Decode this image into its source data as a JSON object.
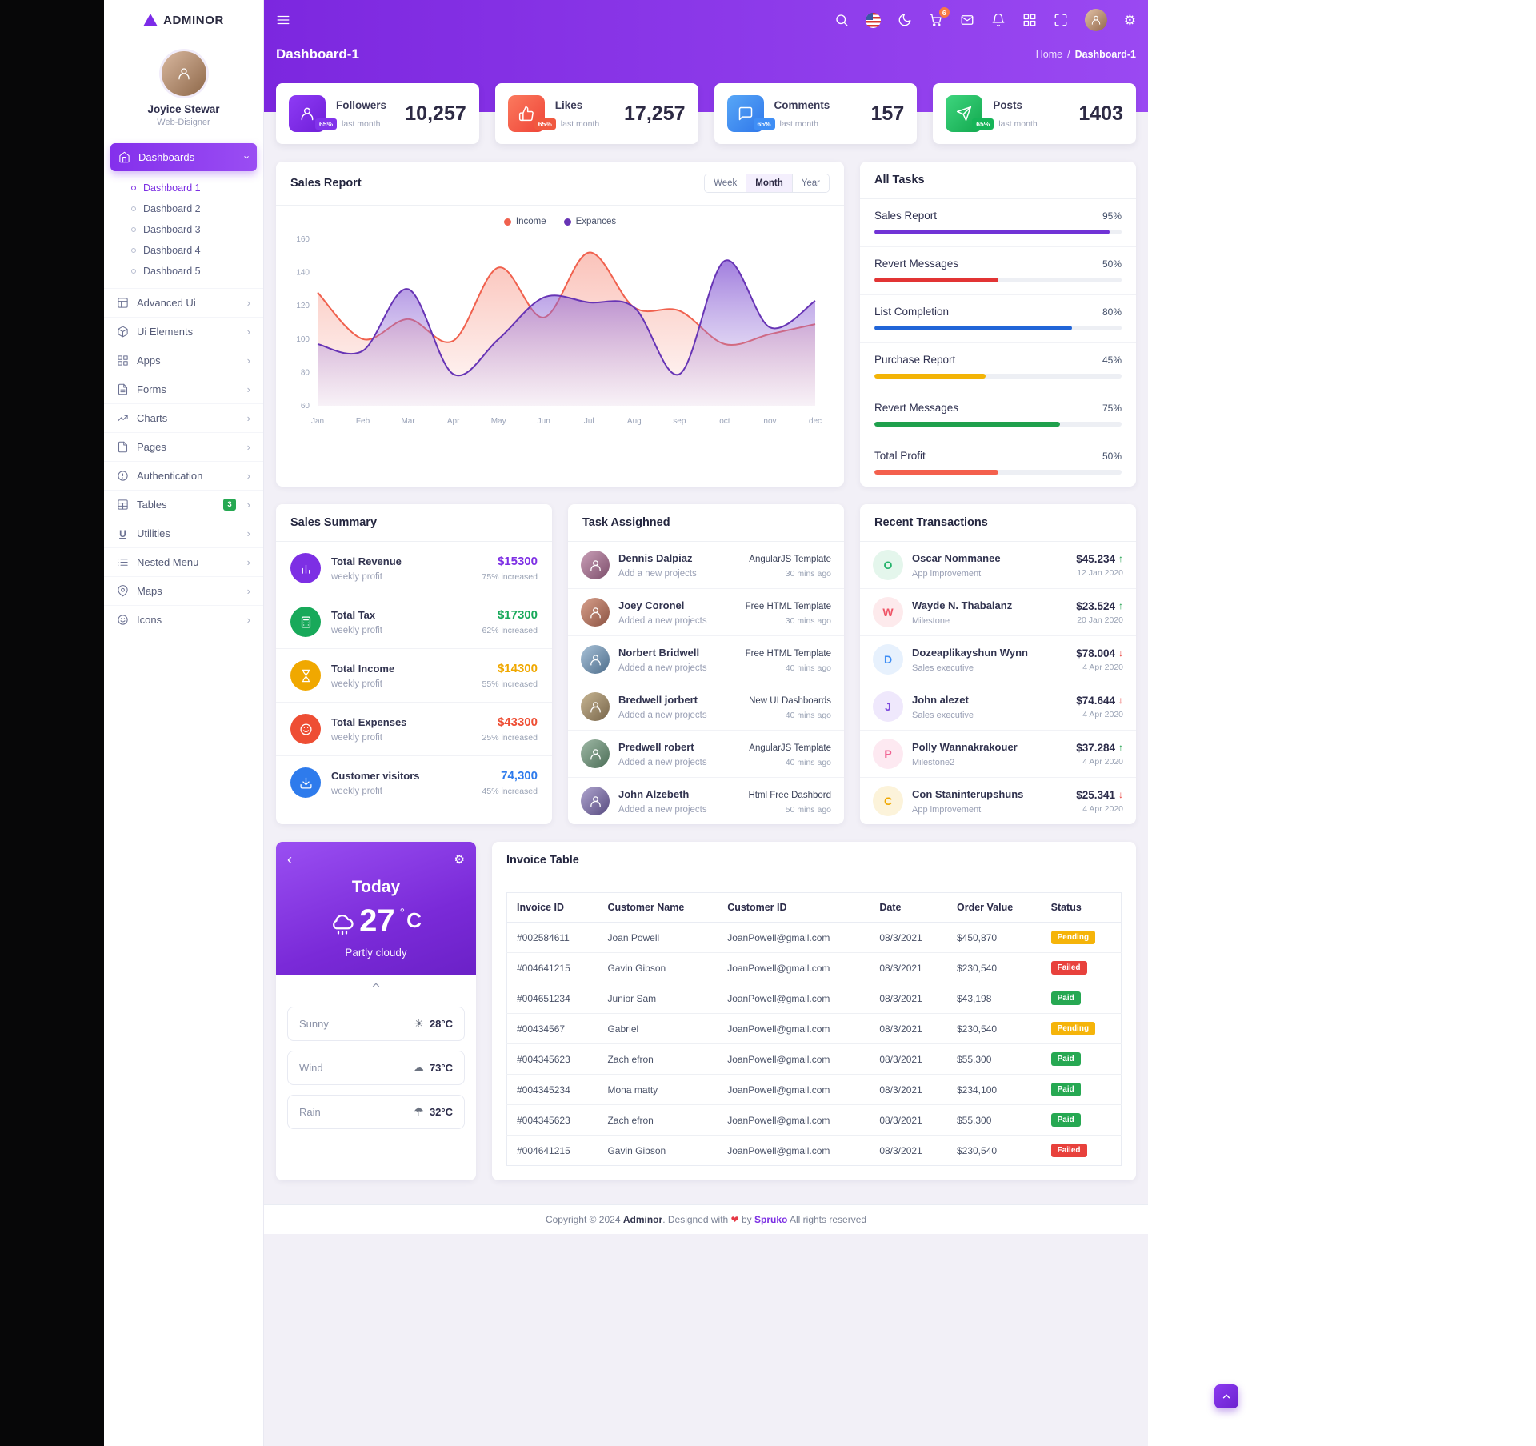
{
  "brand": {
    "name": "ADMINOR"
  },
  "profile": {
    "name": "Joyice Stewar",
    "role": "Web-Disigner"
  },
  "sidebar": {
    "items": [
      {
        "label": "Dashboards"
      },
      {
        "label": "Advanced Ui"
      },
      {
        "label": "Ui Elements"
      },
      {
        "label": "Apps"
      },
      {
        "label": "Forms"
      },
      {
        "label": "Charts"
      },
      {
        "label": "Pages"
      },
      {
        "label": "Authentication"
      },
      {
        "label": "Tables",
        "badge": "3"
      },
      {
        "label": "Utilities"
      },
      {
        "label": "Nested Menu"
      },
      {
        "label": "Maps"
      },
      {
        "label": "Icons"
      }
    ],
    "dashboards_sub": [
      {
        "label": "Dashboard 1"
      },
      {
        "label": "Dashboard 2"
      },
      {
        "label": "Dashboard 3"
      },
      {
        "label": "Dashboard 4"
      },
      {
        "label": "Dashboard 5"
      }
    ]
  },
  "header": {
    "cart_badge": "6"
  },
  "page": {
    "title": "Dashboard-1",
    "breadcrumb_home": "Home",
    "breadcrumb_sep": "/",
    "breadcrumb_current": "Dashboard-1"
  },
  "stats": [
    {
      "label": "Followers",
      "badge": "65%",
      "period": "last month",
      "value": "10,257",
      "color": "#8133ea"
    },
    {
      "label": "Likes",
      "badge": "65%",
      "period": "last month",
      "value": "17,257",
      "color": "#f0583f"
    },
    {
      "label": "Comments",
      "badge": "65%",
      "period": "last month",
      "value": "157",
      "color": "#3f8ef5"
    },
    {
      "label": "Posts",
      "badge": "65%",
      "period": "last month",
      "value": "1403",
      "color": "#16b458"
    }
  ],
  "sales_report": {
    "title": "Sales Report",
    "ranges": [
      "Week",
      "Month",
      "Year"
    ],
    "active_range": "Month"
  },
  "chart_data": {
    "type": "area",
    "title": "Sales Report",
    "categories": [
      "Jan",
      "Feb",
      "Mar",
      "Apr",
      "May",
      "Jun",
      "Jul",
      "Aug",
      "sep",
      "oct",
      "nov",
      "dec"
    ],
    "series": [
      {
        "name": "Income",
        "color": "#f0614e",
        "values": [
          128,
          100,
          112,
          99,
          143,
          113,
          152,
          119,
          117,
          97,
          103,
          109
        ]
      },
      {
        "name": "Expances",
        "color": "#6734b5",
        "values": [
          97,
          93,
          130,
          79,
          100,
          125,
          122,
          119,
          79,
          147,
          107,
          123
        ]
      }
    ],
    "ylim": [
      60,
      160
    ],
    "yticks": [
      160,
      140,
      120,
      100,
      80,
      60
    ],
    "legend_position": "top",
    "grid": false
  },
  "all_tasks": {
    "title": "All Tasks",
    "items": [
      {
        "label": "Sales Report",
        "percent": 95,
        "percent_label": "95%",
        "color": "#7133d6"
      },
      {
        "label": "Revert Messages",
        "percent": 50,
        "percent_label": "50%",
        "color": "#e23434"
      },
      {
        "label": "List Completion",
        "percent": 80,
        "percent_label": "80%",
        "color": "#2165d8"
      },
      {
        "label": "Purchase Report",
        "percent": 45,
        "percent_label": "45%",
        "color": "#f3b406"
      },
      {
        "label": "Revert Messages",
        "percent": 75,
        "percent_label": "75%",
        "color": "#1fa04c"
      },
      {
        "label": "Total Profit",
        "percent": 50,
        "percent_label": "50%",
        "color": "#f4604d"
      }
    ]
  },
  "sales_summary": {
    "title": "Sales Summary",
    "items": [
      {
        "label": "Total Revenue",
        "sub": "weekly profit",
        "value": "$15300",
        "note": "75% increased",
        "color": "#7d2fe4"
      },
      {
        "label": "Total Tax",
        "sub": "weekly profit",
        "value": "$17300",
        "note": "62% increased",
        "color": "#18a95a"
      },
      {
        "label": "Total Income",
        "sub": "weekly profit",
        "value": "$14300",
        "note": "55% increased",
        "color": "#f0a800"
      },
      {
        "label": "Total Expenses",
        "sub": "weekly profit",
        "value": "$43300",
        "note": "25% increased",
        "color": "#ee4e34"
      },
      {
        "label": "Customer visitors",
        "sub": "weekly profit",
        "value": "74,300",
        "note": "45% increased",
        "color": "#2e7bec"
      }
    ]
  },
  "tasks_assigned": {
    "title": "Task Assighned",
    "items": [
      {
        "name": "Dennis Dalpiaz",
        "sub": "Add a new projects",
        "tag": "AngularJS Template",
        "time": "30 mins ago"
      },
      {
        "name": "Joey Coronel",
        "sub": "Added a new projects",
        "tag": "Free HTML Template",
        "time": "30 mins ago"
      },
      {
        "name": "Norbert Bridwell",
        "sub": "Added a new projects",
        "tag": "Free HTML Template",
        "time": "40 mins ago"
      },
      {
        "name": "Bredwell jorbert",
        "sub": "Added a new projects",
        "tag": "New UI Dashboards",
        "time": "40 mins ago"
      },
      {
        "name": "Predwell robert",
        "sub": "Added a new projects",
        "tag": "AngularJS Template",
        "time": "40 mins ago"
      },
      {
        "name": "John Alzebeth",
        "sub": "Added a new projects",
        "tag": "Html Free Dashbord",
        "time": "50 mins ago"
      }
    ]
  },
  "transactions": {
    "title": "Recent Transactions",
    "items": [
      {
        "letter": "O",
        "name": "Oscar Nommanee",
        "role": "App improvement",
        "amount": "$45.234",
        "direction": "up",
        "date": "12 Jan 2020",
        "color": "#23b26a"
      },
      {
        "letter": "W",
        "name": "Wayde N. Thabalanz",
        "role": "Milestone",
        "amount": "$23.524",
        "direction": "up",
        "date": "20 Jan 2020",
        "color": "#ef5667"
      },
      {
        "letter": "D",
        "name": "Dozeaplikayshun Wynn",
        "role": "Sales executive",
        "amount": "$78.004",
        "direction": "down",
        "date": "4 Apr 2020",
        "color": "#3f8ef5"
      },
      {
        "letter": "J",
        "name": "John alezet",
        "role": "Sales executive",
        "amount": "$74.644",
        "direction": "down",
        "date": "4 Apr 2020",
        "color": "#7d4bdd"
      },
      {
        "letter": "P",
        "name": "Polly Wannakrakouer",
        "role": "Milestone2",
        "amount": "$37.284",
        "direction": "up",
        "date": "4 Apr 2020",
        "color": "#f06292"
      },
      {
        "letter": "C",
        "name": "Con Staninterupshuns",
        "role": "App improvement",
        "amount": "$25.341",
        "direction": "down",
        "date": "4 Apr 2020",
        "color": "#f0a800"
      }
    ]
  },
  "weather": {
    "day": "Today",
    "temp": "27",
    "degree": "°",
    "unit": "C",
    "condition": "Partly cloudy",
    "rows": [
      {
        "label": "Sunny",
        "value": "28°C",
        "icon": "sun-icon"
      },
      {
        "label": "Wind",
        "value": "73°C",
        "icon": "cloud-icon"
      },
      {
        "label": "Rain",
        "value": "32°C",
        "icon": "rain-icon"
      }
    ]
  },
  "invoice": {
    "title": "Invoice Table",
    "columns": [
      "Invoice ID",
      "Customer Name",
      "Customer ID",
      "Date",
      "Order Value",
      "Status"
    ],
    "rows": [
      {
        "id": "#002584611",
        "customer": "Joan Powell",
        "customer_id": "JoanPowell@gmail.com",
        "date": "08/3/2021",
        "value": "$450,870",
        "status": "Pending"
      },
      {
        "id": "#004641215",
        "customer": "Gavin Gibson",
        "customer_id": "JoanPowell@gmail.com",
        "date": "08/3/2021",
        "value": "$230,540",
        "status": "Failed"
      },
      {
        "id": "#004651234",
        "customer": "Junior Sam",
        "customer_id": "JoanPowell@gmail.com",
        "date": "08/3/2021",
        "value": "$43,198",
        "status": "Paid"
      },
      {
        "id": "#00434567",
        "customer": "Gabriel",
        "customer_id": "JoanPowell@gmail.com",
        "date": "08/3/2021",
        "value": "$230,540",
        "status": "Pending"
      },
      {
        "id": "#004345623",
        "customer": "Zach efron",
        "customer_id": "JoanPowell@gmail.com",
        "date": "08/3/2021",
        "value": "$55,300",
        "status": "Paid"
      },
      {
        "id": "#004345234",
        "customer": "Mona matty",
        "customer_id": "JoanPowell@gmail.com",
        "date": "08/3/2021",
        "value": "$234,100",
        "status": "Paid"
      },
      {
        "id": "#004345623",
        "customer": "Zach efron",
        "customer_id": "JoanPowell@gmail.com",
        "date": "08/3/2021",
        "value": "$55,300",
        "status": "Paid"
      },
      {
        "id": "#004641215",
        "customer": "Gavin Gibson",
        "customer_id": "JoanPowell@gmail.com",
        "date": "08/3/2021",
        "value": "$230,540",
        "status": "Failed"
      }
    ]
  },
  "footer": {
    "prefix": "Copyright © 2024 ",
    "brand": "Adminor",
    "middle": ". Designed with ",
    "heart": "❤",
    "by": " by ",
    "link": "Spruko",
    "suffix": " All rights reserved"
  }
}
